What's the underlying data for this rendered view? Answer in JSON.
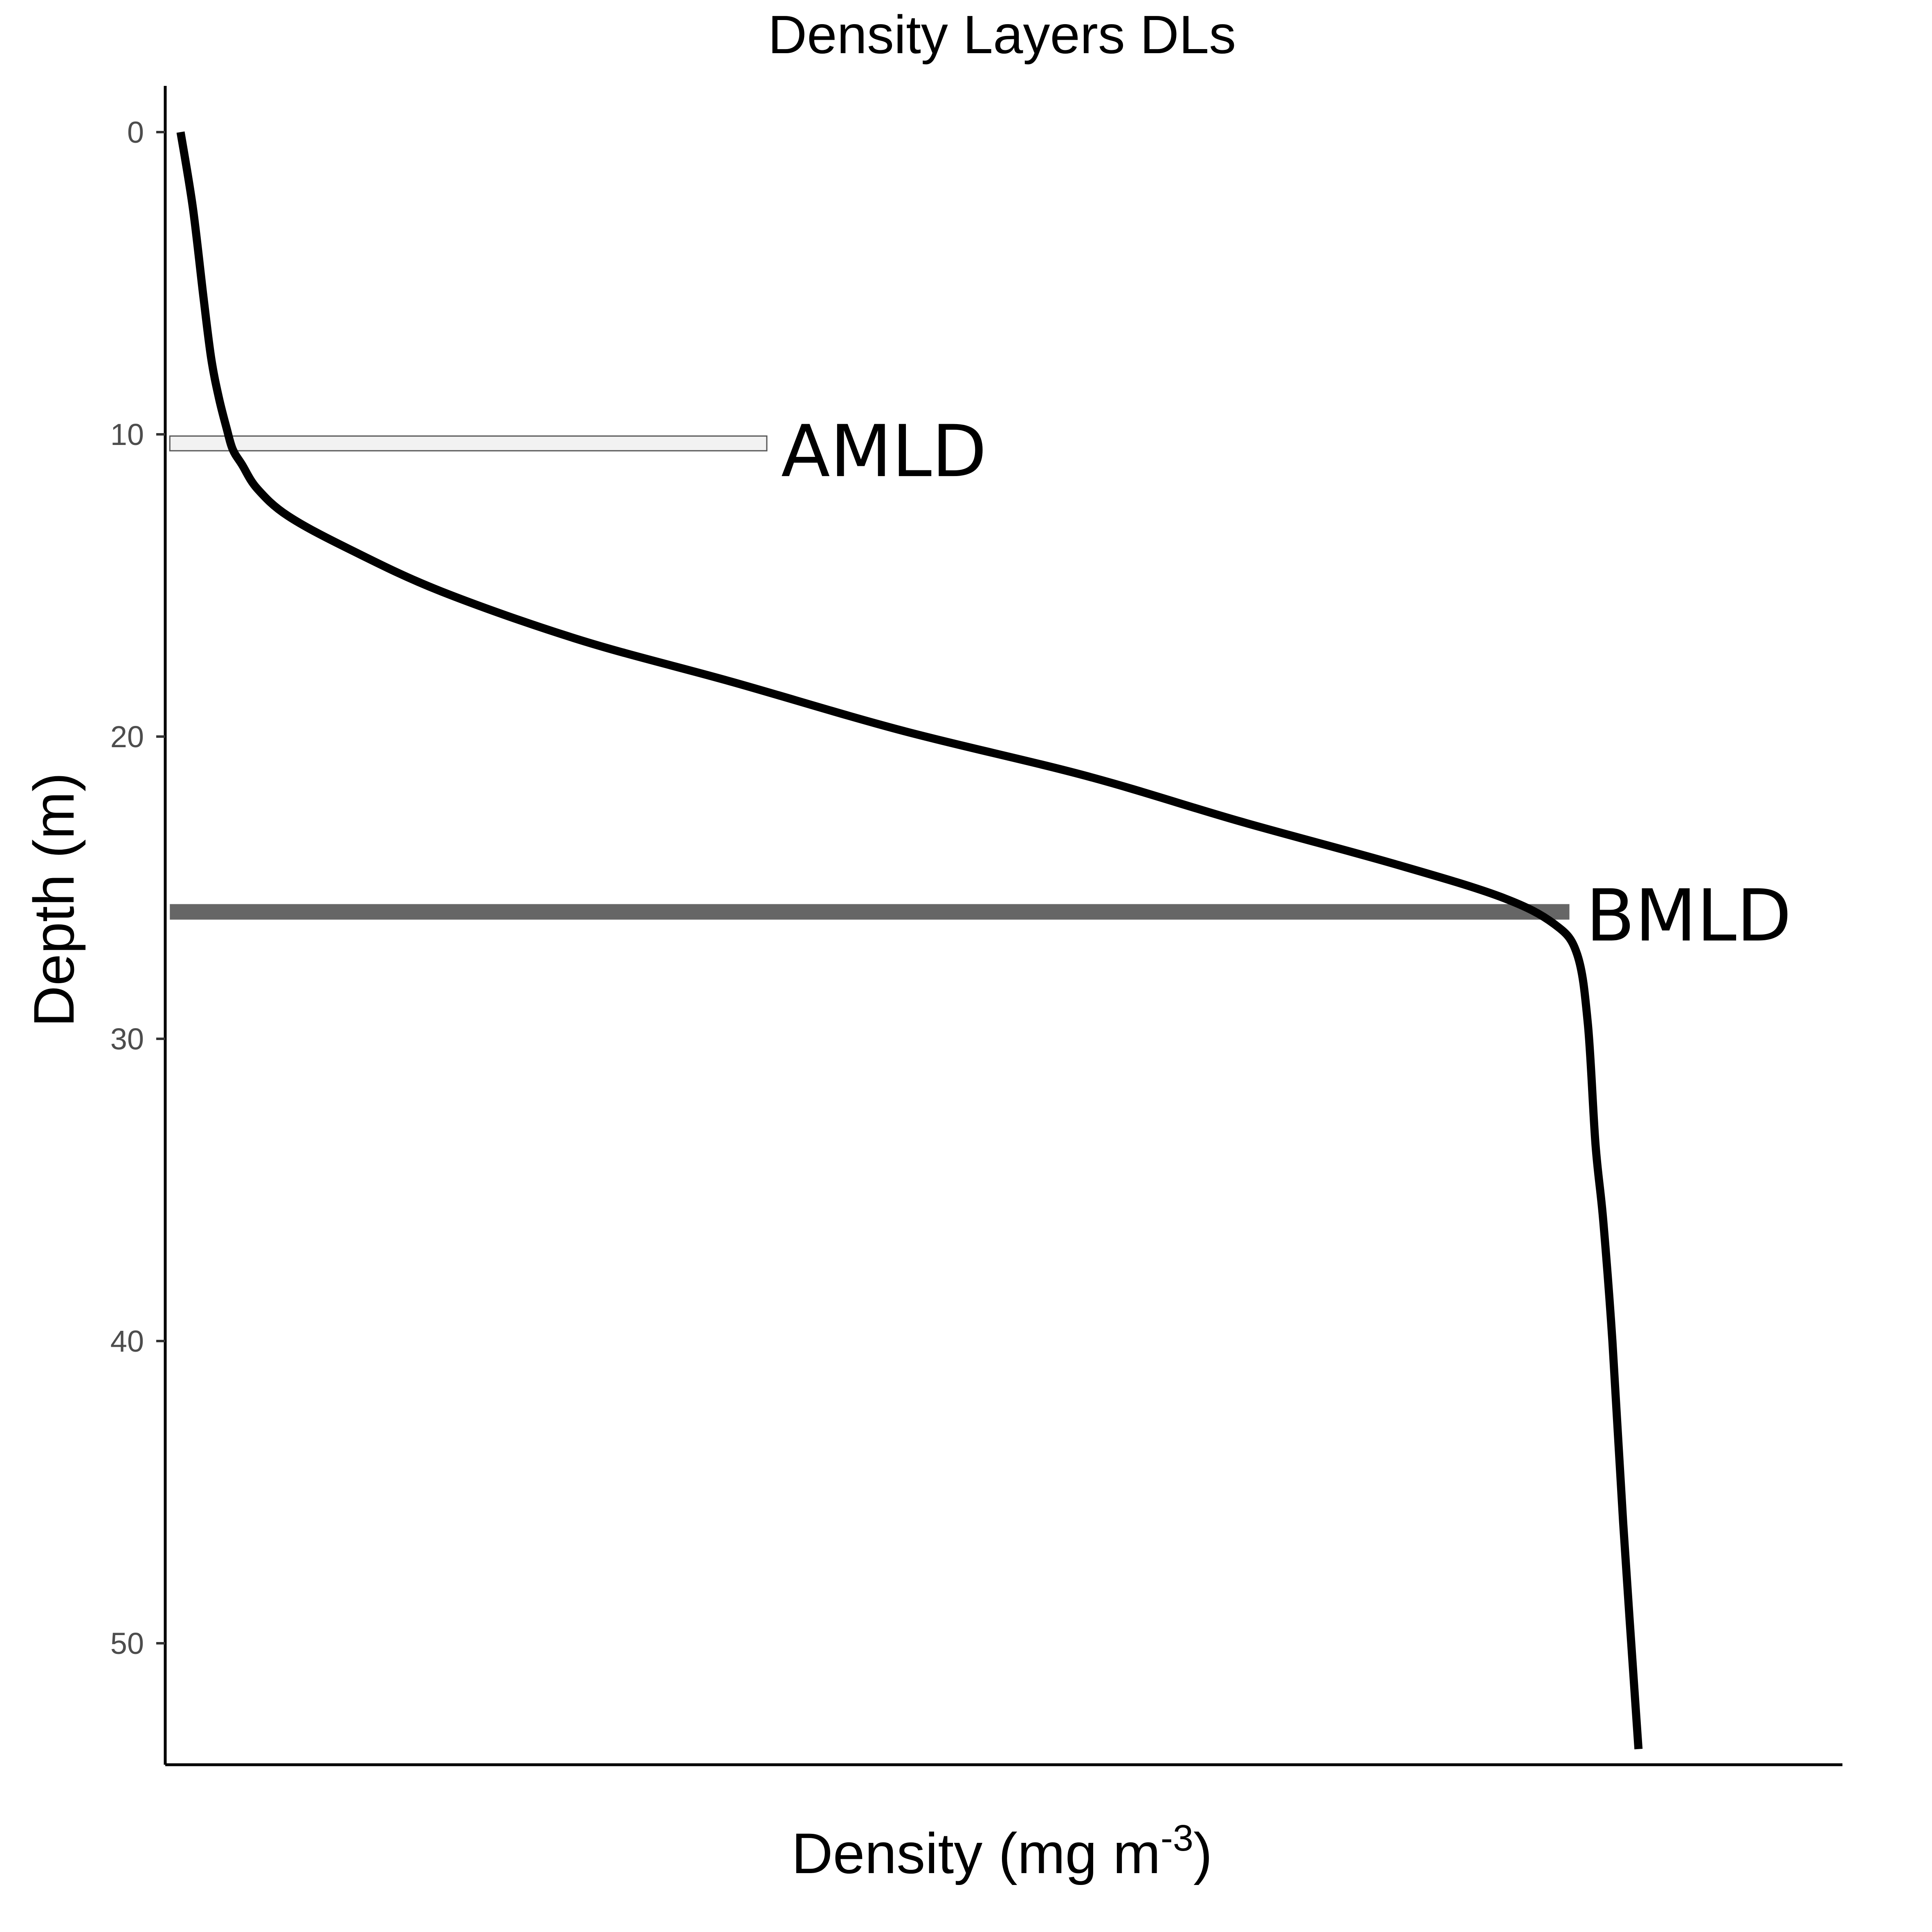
{
  "chart_data": {
    "type": "line",
    "title": "Density Layers DLs",
    "xlabel": "Density (mg m",
    "xlabel_sup": "-3",
    "xlabel_end": ")",
    "ylabel": "Depth (m)",
    "y_reversed": true,
    "ylim": [
      54,
      -1.5
    ],
    "xlim": [
      0,
      100
    ],
    "y_ticks": [
      0,
      10,
      20,
      30,
      40,
      50
    ],
    "y_tick_labels": [
      "0",
      "10",
      "20",
      "30",
      "40",
      "50"
    ],
    "grid": false,
    "colors": {
      "line": "#000000",
      "amld": "#f2f2f2",
      "amld_border": "#555555",
      "bmld": "#666666"
    },
    "series": [
      {
        "x": [
          1.0,
          1.8,
          2.5,
          3.0,
          3.5,
          4.0,
          4.4,
          5.0,
          6.0,
          8.0,
          12.0,
          18.0,
          27.0,
          37.0,
          48.0,
          60.0,
          70.0,
          80.0,
          87.0,
          90.5,
          92.0,
          92.7,
          93.2,
          93.7,
          94.3,
          95.0,
          96.0
        ],
        "y": [
          0,
          2.5,
          5.5,
          7.5,
          8.8,
          9.8,
          10.5,
          11.0,
          11.8,
          12.7,
          13.8,
          15.2,
          16.8,
          18.2,
          19.8,
          21.3,
          22.8,
          24.2,
          25.3,
          26.2,
          27.2,
          29.5,
          33.5,
          36.0,
          40.0,
          46.0,
          53.5
        ]
      }
    ],
    "annotations": [
      {
        "label": "AMLD",
        "depth": 10.3,
        "x_start": 0.3,
        "x_end": 39.2
      },
      {
        "label": "BMLD",
        "depth": 25.8,
        "x_start": 0.3,
        "x_end": 91.5
      }
    ]
  }
}
